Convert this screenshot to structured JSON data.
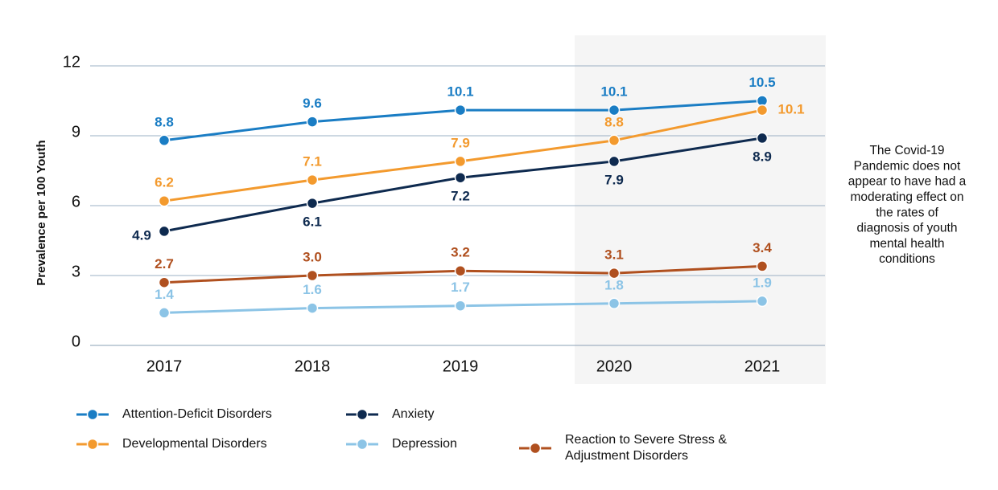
{
  "chart_data": {
    "type": "line",
    "categories": [
      "2017",
      "2018",
      "2019",
      "2020",
      "2021"
    ],
    "y_axis_label": "Prevalence per 100 Youth",
    "ylim": [
      0,
      12
    ],
    "yticks": [
      0,
      3,
      6,
      9,
      12
    ],
    "grid": true,
    "series": [
      {
        "name": "Attention-Deficit Disorders",
        "color": "#1a7dc4",
        "values": [
          8.8,
          9.6,
          10.1,
          10.1,
          10.5
        ]
      },
      {
        "name": "Developmental Disorders",
        "color": "#f39a2e",
        "values": [
          6.2,
          7.1,
          7.9,
          8.8,
          10.1
        ]
      },
      {
        "name": "Anxiety",
        "color": "#0e2a4f",
        "values": [
          4.9,
          6.1,
          7.2,
          7.9,
          8.9
        ]
      },
      {
        "name": "Depression",
        "color": "#8cc4e6",
        "values": [
          1.4,
          1.6,
          1.7,
          1.8,
          1.9
        ]
      },
      {
        "name": "Reaction to Severe Stress & Adjustment Disorders",
        "color": "#b0501f",
        "values": [
          2.7,
          3.0,
          3.2,
          3.1,
          3.4
        ],
        "value_labels": [
          "2.7",
          "3.0",
          "3.2",
          "3.1",
          "3.4"
        ]
      }
    ],
    "annotation": [
      "The Covid-19",
      "Pandemic does not",
      "appear to have had a",
      "moderating effect on",
      "the rates of",
      "diagnosis of youth",
      "mental health",
      "conditions"
    ]
  }
}
